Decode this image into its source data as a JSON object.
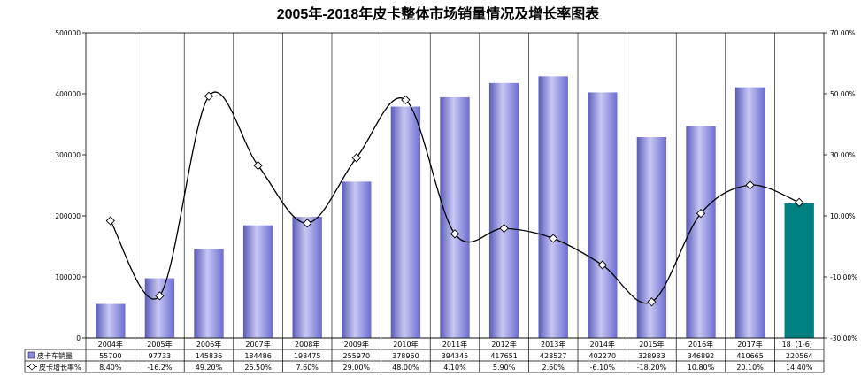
{
  "chart_data": {
    "type": "bar",
    "title": "2005年-2018年皮卡整体市场销量情况及增长率图表",
    "categories": [
      "2004年",
      "2005年",
      "2006年",
      "2007年",
      "2008年",
      "2009年",
      "2010年",
      "2011年",
      "2012年",
      "2013年",
      "2014年",
      "2015年",
      "2016年",
      "2017年",
      "18（1-6）"
    ],
    "series": [
      {
        "name": "皮卡车销量",
        "type": "bar",
        "axis": "left",
        "values": [
          55700,
          97733,
          145836,
          184486,
          198475,
          255970,
          378960,
          394345,
          417651,
          428527,
          402270,
          328933,
          346892,
          410665,
          220564
        ],
        "value_labels": [
          "55700",
          "97733",
          "145836",
          "184486",
          "198475",
          "255970",
          "378960",
          "394345",
          "417651",
          "428527",
          "402270",
          "328933",
          "346892",
          "410665",
          "220564"
        ],
        "color": "#8a8ae0",
        "highlight_last_color": "#008080"
      },
      {
        "name": "皮卡增长率%",
        "type": "line",
        "axis": "right",
        "values": [
          8.4,
          -16.2,
          49.2,
          26.5,
          7.6,
          29.0,
          48.0,
          4.1,
          5.9,
          2.6,
          -6.1,
          -18.2,
          10.8,
          20.1,
          14.4
        ],
        "value_labels": [
          "8.40%",
          "-16.2%",
          "49.20%",
          "26.50%",
          "7.60%",
          "29.00%",
          "48.00%",
          "4.10%",
          "5.90%",
          "2.60%",
          "-6.10%",
          "-18.20%",
          "10.80%",
          "20.10%",
          "14.40%"
        ],
        "color": "#000000",
        "marker": "diamond"
      }
    ],
    "y_left": {
      "min": 0,
      "max": 500000,
      "ticks": [
        "0",
        "100000",
        "200000",
        "300000",
        "400000",
        "500000"
      ]
    },
    "y_right": {
      "min": -30,
      "max": 70,
      "ticks": [
        "-30.00%",
        "-10.00%",
        "10.00%",
        "30.00%",
        "50.00%",
        "70.00%"
      ]
    },
    "grid": "vertical category lines",
    "legend": "data table below chart"
  }
}
